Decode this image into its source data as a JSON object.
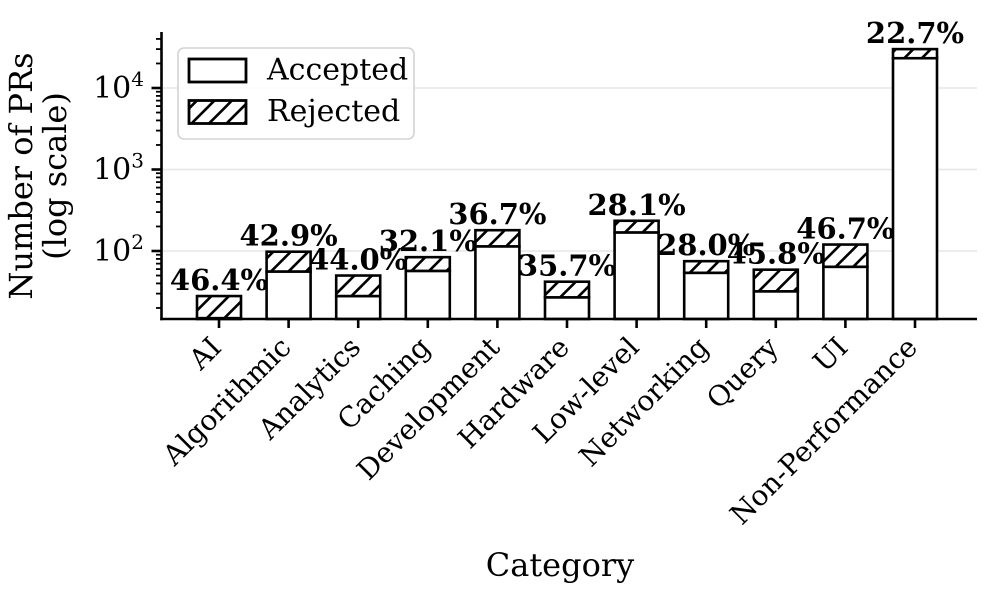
{
  "chart_data": {
    "type": "bar",
    "stacked": true,
    "y_scale": "log",
    "title": "",
    "xlabel": "Category",
    "ylabel": "Number of PRs (log scale)",
    "ylabel_lines": [
      "Number of PRs",
      "(log scale)"
    ],
    "categories": [
      "AI",
      "Algorithmic",
      "Analytics",
      "Caching",
      "Development",
      "Hardware",
      "Low-level",
      "Networking",
      "Query",
      "UI",
      "Non-Performance"
    ],
    "series": [
      {
        "name": "Accepted",
        "style": "solid",
        "values": [
          15,
          56,
          28,
          57,
          114,
          27,
          169,
          54,
          32,
          64,
          23200
        ]
      },
      {
        "name": "Rejected",
        "style": "hatched",
        "values": [
          13,
          42,
          22,
          27,
          66,
          15,
          66,
          21,
          27,
          56,
          6800
        ]
      }
    ],
    "totals": [
      28,
      98,
      50,
      84,
      180,
      42,
      235,
      75,
      59,
      120,
      30000
    ],
    "bar_labels": [
      "46.4%",
      "42.9%",
      "44.0%",
      "32.1%",
      "36.7%",
      "35.7%",
      "28.1%",
      "28.0%",
      "45.8%",
      "46.7%",
      "22.7%"
    ],
    "yticks": [
      {
        "base": "10",
        "exp": "2",
        "value": 100
      },
      {
        "base": "10",
        "exp": "3",
        "value": 1000
      },
      {
        "base": "10",
        "exp": "4",
        "value": 10000
      }
    ],
    "ylim": [
      14.6,
      48800
    ],
    "grid": "horizontal-major",
    "legend": {
      "position": "upper-left",
      "items": [
        "Accepted",
        "Rejected"
      ]
    }
  },
  "colors": {
    "background": "#ffffff",
    "bar_fill": "#ffffff",
    "bar_edge": "#000000",
    "hatch": "#000000",
    "text": "#000000",
    "grid": "#e6e6e6",
    "legend_border": "#d4d4d4",
    "legend_fill": "#ffffff"
  }
}
